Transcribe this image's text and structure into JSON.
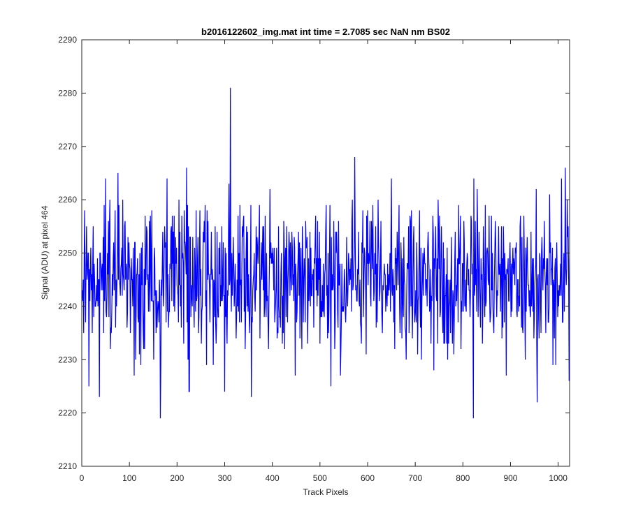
{
  "chart_data": {
    "type": "line",
    "title": "b2016122602_img.mat int time = 2.7085 sec  NaN nm BS02",
    "xlabel": "Track Pixels",
    "ylabel": "Signal (ADU) at pixel 464",
    "xlim": [
      0,
      1024
    ],
    "ylim": [
      2210,
      2290
    ],
    "xticks": [
      0,
      100,
      200,
      300,
      400,
      500,
      600,
      700,
      800,
      900,
      1000
    ],
    "yticks": [
      2210,
      2220,
      2230,
      2240,
      2250,
      2260,
      2270,
      2280,
      2290
    ],
    "grid": false,
    "legend": "none",
    "series_color": "#0000ff",
    "series": [
      {
        "x_start": 1,
        "x_step": 1,
        "length": 1024,
        "mean": 2245,
        "std": 7,
        "known_points": [
          {
            "x": 15,
            "y": 2225
          },
          {
            "x": 37,
            "y": 2223
          },
          {
            "x": 76,
            "y": 2265
          },
          {
            "x": 165,
            "y": 2219
          },
          {
            "x": 220,
            "y": 2266
          },
          {
            "x": 300,
            "y": 2224
          },
          {
            "x": 312,
            "y": 2281
          },
          {
            "x": 573,
            "y": 2268
          },
          {
            "x": 822,
            "y": 2219
          },
          {
            "x": 956,
            "y": 2222
          },
          {
            "x": 1015,
            "y": 2266
          }
        ]
      }
    ]
  }
}
